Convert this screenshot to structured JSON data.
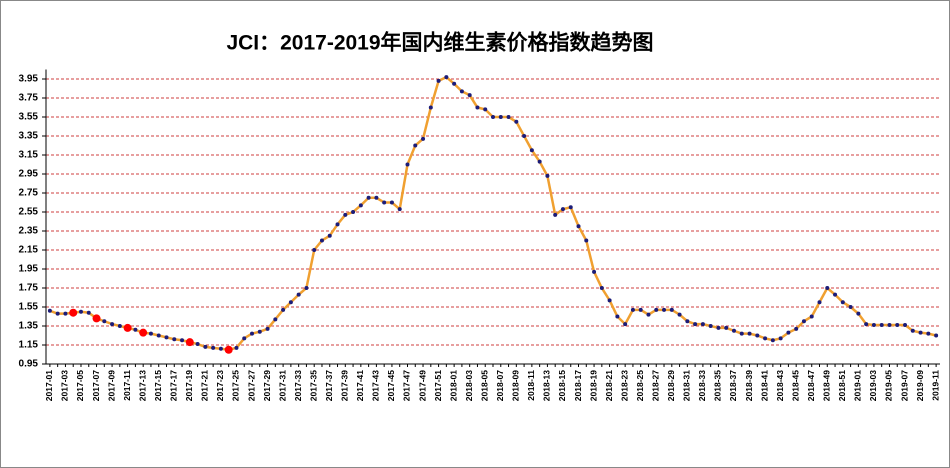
{
  "chart_data": {
    "type": "line",
    "title": "JCI：2017-2019年国内维生素价格指数趋势图",
    "categories": [
      "2017-01",
      null,
      "2017-03",
      null,
      "2017-05",
      null,
      "2017-07",
      null,
      "2017-09",
      null,
      "2017-11",
      null,
      "2017-13",
      null,
      "2017-15",
      null,
      "2017-17",
      null,
      "2017-19",
      null,
      "2017-21",
      null,
      "2017-23",
      null,
      "2017-25",
      null,
      "2017-27",
      null,
      "2017-29",
      null,
      "2017-31",
      null,
      "2017-33",
      null,
      "2017-35",
      null,
      "2017-37",
      null,
      "2017-39",
      null,
      "2017-41",
      null,
      "2017-43",
      null,
      "2017-45",
      null,
      "2017-47",
      null,
      "2017-49",
      null,
      "2017-51",
      null,
      "2018-01",
      null,
      "2018-03",
      null,
      "2018-05",
      null,
      "2018-07",
      null,
      "2018-09",
      null,
      "2018-11",
      null,
      "2018-13",
      null,
      "2018-15",
      null,
      "2018-17",
      null,
      "2018-19",
      null,
      "2018-21",
      null,
      "2018-23",
      null,
      "2018-25",
      null,
      "2018-27",
      null,
      "2018-29",
      null,
      "2018-31",
      null,
      "2018-33",
      null,
      "2018-35",
      null,
      "2018-37",
      null,
      "2018-39",
      null,
      "2018-41",
      null,
      "2018-43",
      null,
      "2018-45",
      null,
      "2018-47",
      null,
      "2018-49",
      null,
      "2018-51",
      null,
      "2019-01",
      null,
      "2019-03",
      null,
      "2019-05",
      null,
      "2019-07",
      null,
      "2019-09",
      null,
      "2019-11"
    ],
    "values": [
      1.51,
      1.48,
      1.48,
      1.49,
      1.5,
      1.49,
      1.43,
      1.4,
      1.37,
      1.35,
      1.33,
      1.31,
      1.28,
      1.27,
      1.25,
      1.23,
      1.21,
      1.2,
      1.18,
      1.16,
      1.13,
      1.12,
      1.11,
      1.1,
      1.12,
      1.22,
      1.27,
      1.29,
      1.32,
      1.42,
      1.52,
      1.6,
      1.68,
      1.75,
      2.15,
      2.25,
      2.3,
      2.42,
      2.52,
      2.55,
      2.62,
      2.7,
      2.7,
      2.65,
      2.65,
      2.58,
      3.05,
      3.25,
      3.32,
      3.65,
      3.93,
      3.97,
      3.9,
      3.82,
      3.78,
      3.65,
      3.63,
      3.55,
      3.55,
      3.55,
      3.5,
      3.35,
      3.2,
      3.08,
      2.93,
      2.52,
      2.58,
      2.6,
      2.4,
      2.25,
      1.92,
      1.75,
      1.62,
      1.45,
      1.37,
      1.52,
      1.52,
      1.47,
      1.52,
      1.52,
      1.52,
      1.47,
      1.4,
      1.37,
      1.37,
      1.35,
      1.33,
      1.33,
      1.3,
      1.27,
      1.27,
      1.25,
      1.22,
      1.2,
      1.22,
      1.28,
      1.32,
      1.4,
      1.45,
      1.6,
      1.75,
      1.68,
      1.6,
      1.55,
      1.48,
      1.37,
      1.36,
      1.36,
      1.36,
      1.36,
      1.36,
      1.3,
      1.28,
      1.27,
      1.25
    ],
    "color": "#f0a030",
    "marker_color": "#1c1c78",
    "highlight_points": [
      3,
      6,
      10,
      12,
      18,
      23
    ],
    "highlight_color": "#ff0000",
    "ylim": [
      0.95,
      4.05
    ],
    "yticks": [
      0.95,
      1.15,
      1.35,
      1.55,
      1.75,
      1.95,
      2.15,
      2.35,
      2.55,
      2.75,
      2.95,
      3.15,
      3.35,
      3.55,
      3.75,
      3.95
    ],
    "grid": true,
    "grid_color": "#c00000"
  }
}
